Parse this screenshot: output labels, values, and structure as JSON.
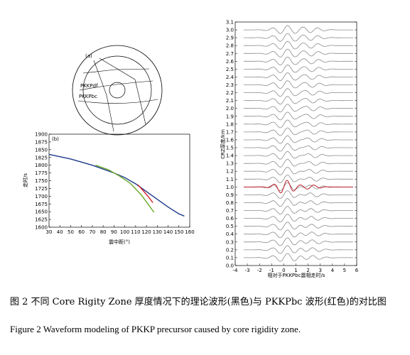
{
  "panel_a": {
    "label": "(a)",
    "ray_labels": [
      "PKKPdf",
      "PKKPbc"
    ]
  },
  "chart_data": [
    {
      "type": "line",
      "panel_label": "(b)",
      "xlabel": "震中距(°)",
      "ylabel": "走时/s",
      "xlim": [
        30,
        160
      ],
      "ylim": [
        1600,
        1900
      ],
      "xticks": [
        30,
        40,
        50,
        60,
        70,
        80,
        90,
        100,
        110,
        120,
        130,
        140,
        150,
        160
      ],
      "yticks": [
        1600,
        1625,
        1650,
        1675,
        1700,
        1725,
        1750,
        1775,
        1800,
        1825,
        1850,
        1875,
        1900
      ],
      "grid": false,
      "series": [
        {
          "color": "#1f3a8a",
          "x": [
            30,
            50,
            70,
            90,
            100,
            110,
            120,
            130,
            140,
            150,
            155
          ],
          "y": [
            1835,
            1820,
            1800,
            1775,
            1760,
            1740,
            1715,
            1690,
            1665,
            1643,
            1636
          ]
        },
        {
          "color": "#6aaa2a",
          "x": [
            73,
            85,
            95,
            105,
            115,
            122,
            127
          ],
          "y": [
            1800,
            1785,
            1765,
            1742,
            1705,
            1672,
            1648
          ]
        },
        {
          "color": "#d0202a",
          "x": [
            112,
            117,
            122,
            126
          ],
          "y": [
            1737,
            1718,
            1697,
            1679
          ]
        }
      ]
    },
    {
      "type": "line",
      "subtype": "waveform-stack",
      "xlabel": "相对于PKKPbc震相走时/s",
      "ylabel": "CRZ厚度/km",
      "xlim": [
        -4,
        6
      ],
      "ylim": [
        0,
        3.1
      ],
      "xticks": [
        -4,
        -3,
        -2,
        -1,
        0,
        1,
        2,
        3,
        4,
        5,
        6
      ],
      "yticks": [
        0.0,
        0.1,
        0.2,
        0.3,
        0.4,
        0.5,
        0.6,
        0.7,
        0.8,
        0.9,
        1.0,
        1.1,
        1.2,
        1.3,
        1.4,
        1.5,
        1.6,
        1.7,
        1.8,
        1.9,
        2.0,
        2.1,
        2.2,
        2.3,
        2.4,
        2.5,
        2.6,
        2.7,
        2.8,
        2.9,
        3.0,
        3.1
      ],
      "traces_offsets_km": [
        0.1,
        0.2,
        0.3,
        0.4,
        0.5,
        0.6,
        0.7,
        0.8,
        0.9,
        1.0,
        1.1,
        1.2,
        1.3,
        1.4,
        1.5,
        1.6,
        1.7,
        1.8,
        1.9,
        2.0,
        2.1,
        2.2,
        2.3,
        2.4,
        2.5,
        2.6,
        2.7,
        2.8,
        2.9,
        3.0
      ],
      "theoretical_color": "#8a8a8a",
      "observed_trace_offset_km": 1.0,
      "observed_color": "#c0202a"
    }
  ],
  "caption_cn": "图 2  不同 Core  Rigity  Zone 厚度情况下的理论波形(黑色)与 PKKPbc 波形(红色)的对比图",
  "caption_en": "Figure 2 Waveform modeling of PKKP precursor caused by core rigidity zone."
}
